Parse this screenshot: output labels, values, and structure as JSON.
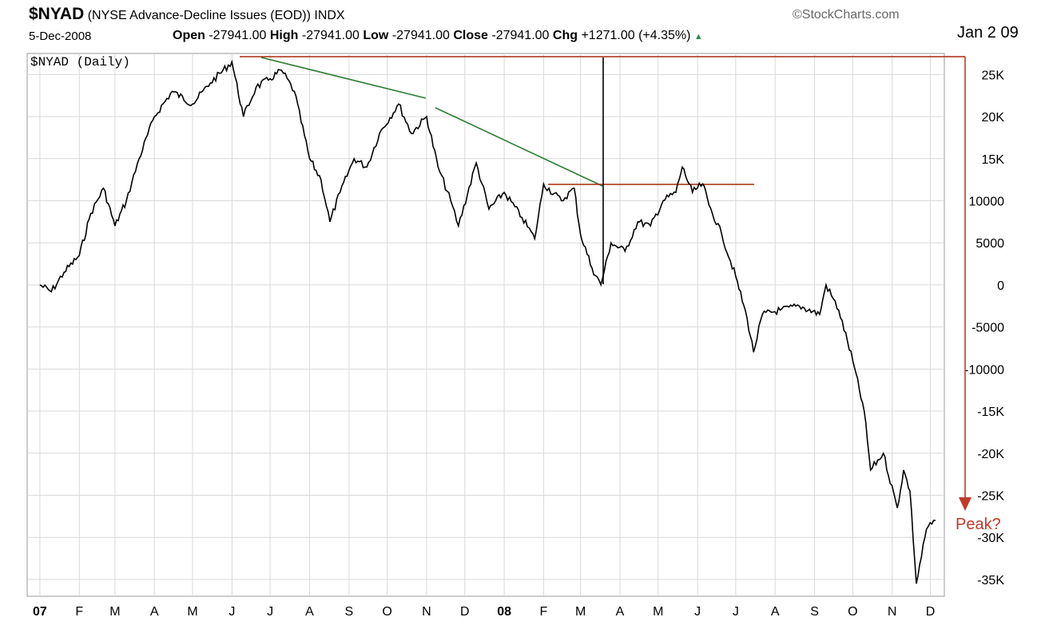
{
  "header": {
    "symbol": "$NYAD",
    "description": "(NYSE Advance-Decline Issues (EOD)) INDX",
    "brand": "©StockCharts.com",
    "date": "5-Dec-2008",
    "open_label": "Open",
    "open_value": "-27941.00",
    "high_label": "High",
    "high_value": "-27941.00",
    "low_label": "Low",
    "low_value": "-27941.00",
    "close_label": "Close",
    "close_value": "-27941.00",
    "chg_label": "Chg",
    "chg_value": "+1271.00 (+4.35%)"
  },
  "annotations": {
    "date_label": "Jan 2 09",
    "peak_label": "Peak?"
  },
  "colors": {
    "price": "#000000",
    "trendline": "#2e7d32",
    "resistance": "#a52a0a",
    "annotation_arrow": "#c0392b",
    "grid": "#d9d9d9"
  },
  "chart_data": {
    "type": "line",
    "title": "$NYAD (Daily)",
    "x_ticks": [
      "07",
      "F",
      "M",
      "A",
      "M",
      "J",
      "J",
      "A",
      "S",
      "O",
      "N",
      "D",
      "08",
      "F",
      "M",
      "A",
      "M",
      "J",
      "J",
      "A",
      "S",
      "O",
      "N",
      "D"
    ],
    "y_ticks": [
      "25K",
      "20K",
      "15K",
      "10000",
      "5000",
      "0",
      "-5000",
      "-10000",
      "-15K",
      "-20K",
      "-25K",
      "-30K",
      "-35K"
    ],
    "ylim": [
      -37000,
      27500
    ],
    "grid": true,
    "series": [
      {
        "points": [
          [
            "2007-01-01",
            0
          ],
          [
            "2007-01-10",
            -800
          ],
          [
            "2007-01-20",
            1500
          ],
          [
            "2007-02-01",
            3500
          ],
          [
            "2007-02-10",
            8500
          ],
          [
            "2007-02-20",
            11500
          ],
          [
            "2007-03-01",
            7000
          ],
          [
            "2007-03-10",
            10000
          ],
          [
            "2007-03-20",
            15000
          ],
          [
            "2007-04-01",
            20000
          ],
          [
            "2007-04-15",
            23000
          ],
          [
            "2007-05-01",
            21500
          ],
          [
            "2007-05-15",
            24000
          ],
          [
            "2007-06-01",
            26500
          ],
          [
            "2007-06-10",
            20000
          ],
          [
            "2007-06-20",
            23500
          ],
          [
            "2007-07-01",
            24500
          ],
          [
            "2007-07-10",
            25500
          ],
          [
            "2007-07-20",
            23000
          ],
          [
            "2007-08-01",
            15000
          ],
          [
            "2007-08-10",
            12500
          ],
          [
            "2007-08-17",
            7500
          ],
          [
            "2007-08-25",
            11000
          ],
          [
            "2007-09-05",
            15000
          ],
          [
            "2007-09-15",
            14000
          ],
          [
            "2007-09-25",
            18000
          ],
          [
            "2007-10-10",
            21500
          ],
          [
            "2007-10-20",
            18000
          ],
          [
            "2007-11-01",
            20000
          ],
          [
            "2007-11-10",
            14000
          ],
          [
            "2007-11-20",
            10000
          ],
          [
            "2007-11-26",
            7000
          ],
          [
            "2007-12-10",
            14500
          ],
          [
            "2007-12-20",
            9000
          ],
          [
            "2008-01-01",
            11000
          ],
          [
            "2008-01-15",
            8000
          ],
          [
            "2008-01-25",
            5500
          ],
          [
            "2008-02-01",
            12000
          ],
          [
            "2008-02-15",
            10000
          ],
          [
            "2008-02-25",
            11500
          ],
          [
            "2008-03-01",
            6000
          ],
          [
            "2008-03-10",
            2000
          ],
          [
            "2008-03-17",
            0
          ],
          [
            "2008-03-25",
            5000
          ],
          [
            "2008-04-05",
            4000
          ],
          [
            "2008-04-15",
            7500
          ],
          [
            "2008-04-25",
            7000
          ],
          [
            "2008-05-05",
            10000
          ],
          [
            "2008-05-15",
            11000
          ],
          [
            "2008-05-20",
            14000
          ],
          [
            "2008-05-28",
            11000
          ],
          [
            "2008-06-05",
            12000
          ],
          [
            "2008-06-10",
            9500
          ],
          [
            "2008-06-20",
            6000
          ],
          [
            "2008-07-01",
            1000
          ],
          [
            "2008-07-10",
            -4000
          ],
          [
            "2008-07-15",
            -8000
          ],
          [
            "2008-07-22",
            -3500
          ],
          [
            "2008-08-05",
            -3000
          ],
          [
            "2008-08-20",
            -2500
          ],
          [
            "2008-09-05",
            -3500
          ],
          [
            "2008-09-10",
            0
          ],
          [
            "2008-09-20",
            -3000
          ],
          [
            "2008-10-01",
            -9000
          ],
          [
            "2008-10-10",
            -15000
          ],
          [
            "2008-10-15",
            -22000
          ],
          [
            "2008-10-25",
            -20000
          ],
          [
            "2008-11-05",
            -26500
          ],
          [
            "2008-11-10",
            -22000
          ],
          [
            "2008-11-15",
            -24500
          ],
          [
            "2008-11-20",
            -35500
          ],
          [
            "2008-11-28",
            -29000
          ],
          [
            "2008-12-05",
            -28000
          ]
        ]
      }
    ]
  }
}
